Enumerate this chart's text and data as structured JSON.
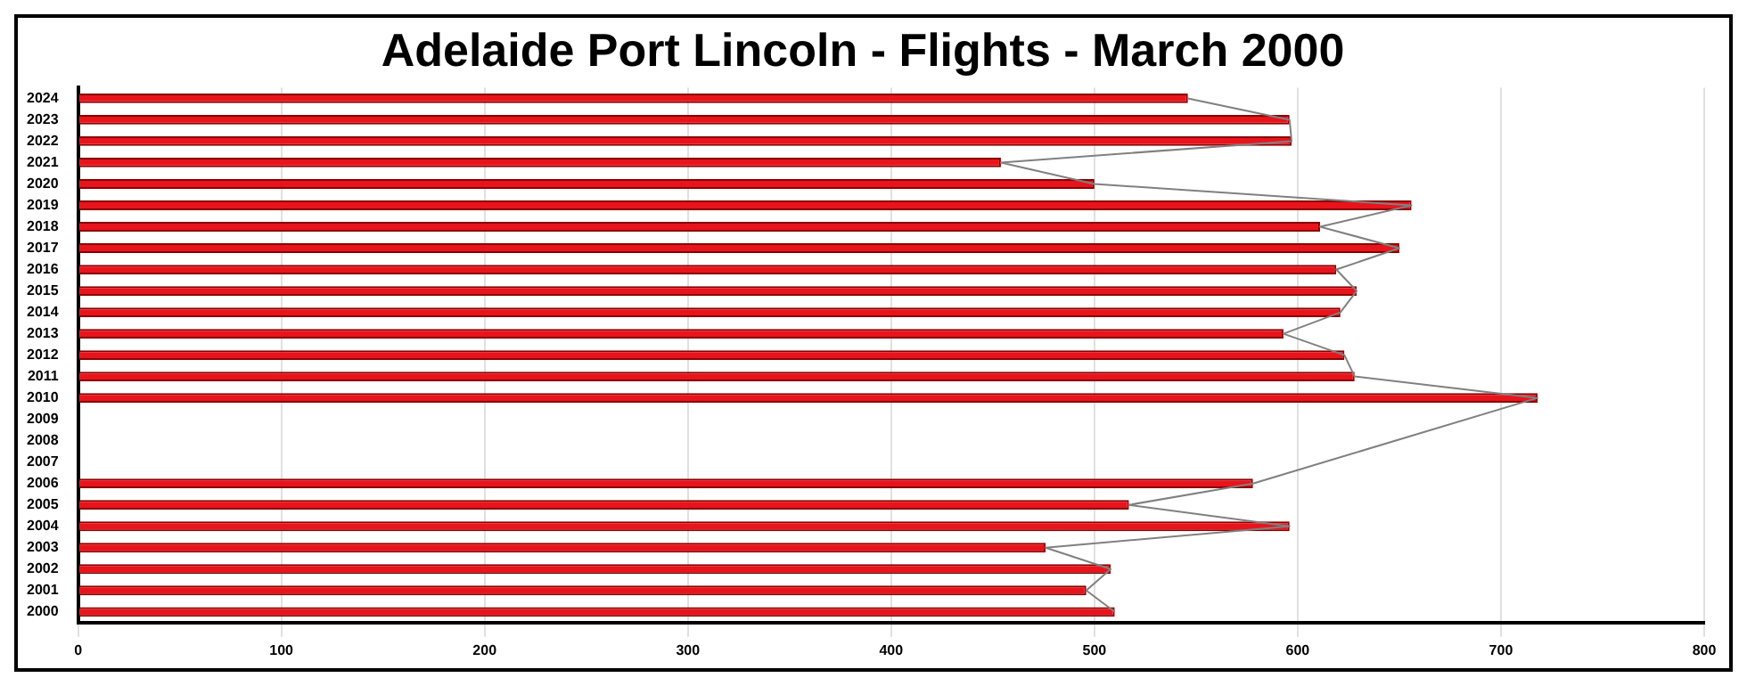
{
  "chart_data": {
    "type": "bar",
    "orientation": "horizontal",
    "title": "Adelaide Port Lincoln - Flights - March 2000",
    "categories": [
      "2024",
      "2023",
      "2022",
      "2021",
      "2020",
      "2019",
      "2018",
      "2017",
      "2016",
      "2015",
      "2014",
      "2013",
      "2012",
      "2011",
      "2010",
      "2009",
      "2008",
      "2007",
      "2006",
      "2005",
      "2004",
      "2003",
      "2002",
      "2001",
      "2000"
    ],
    "series": [
      {
        "color": "#e8141c",
        "values": [
          546,
          596,
          597,
          454,
          500,
          656,
          611,
          650,
          619,
          629,
          621,
          593,
          623,
          628,
          718,
          null,
          null,
          null,
          578,
          517,
          596,
          476,
          508,
          496,
          510
        ]
      },
      {
        "type": "line",
        "color": "#808080",
        "values": [
          546,
          596,
          597,
          454,
          500,
          656,
          611,
          650,
          619,
          629,
          621,
          593,
          623,
          628,
          718,
          null,
          null,
          null,
          578,
          517,
          596,
          476,
          508,
          496,
          510
        ]
      }
    ],
    "xlim": [
      0,
      800
    ],
    "xticks": [
      0,
      100,
      200,
      300,
      400,
      500,
      600,
      700,
      800
    ],
    "grid": "x",
    "legend": false,
    "marker": "none"
  }
}
